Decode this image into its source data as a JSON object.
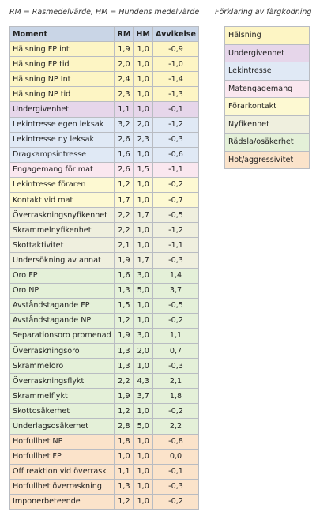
{
  "header": {
    "note_left": "RM = Rasmedelvärde,   HM = Hundens medelvärde",
    "note_right": "Förklaring av färgkodning"
  },
  "table": {
    "columns": [
      "Moment",
      "RM",
      "HM",
      "Avvikelse"
    ],
    "rows": [
      {
        "cells": [
          "Hälsning FP int",
          "1,9",
          "1,0",
          "-0,9"
        ],
        "color": "#fdf5c4"
      },
      {
        "cells": [
          "Hälsning FP tid",
          "2,0",
          "1,0",
          "-1,0"
        ],
        "color": "#fdf5c4"
      },
      {
        "cells": [
          "Hälsning NP Int",
          "2,4",
          "1,0",
          "-1,4"
        ],
        "color": "#fdf5c4"
      },
      {
        "cells": [
          "Hälsning NP tid",
          "2,3",
          "1,0",
          "-1,3"
        ],
        "color": "#fdf5c4"
      },
      {
        "cells": [
          "Undergivenhet",
          "1,1",
          "1,0",
          "-0,1"
        ],
        "color": "#e6d6ea"
      },
      {
        "cells": [
          "Lekintresse egen leksak",
          "3,2",
          "2,0",
          "-1,2"
        ],
        "color": "#e0e9f5"
      },
      {
        "cells": [
          "Lekintresse ny leksak",
          "2,6",
          "2,3",
          "-0,3"
        ],
        "color": "#e0e9f5"
      },
      {
        "cells": [
          "Dragkampsintresse",
          "1,6",
          "1,0",
          "-0,6"
        ],
        "color": "#e0e9f5"
      },
      {
        "cells": [
          "Engagemang för mat",
          "2,6",
          "1,5",
          "-1,1"
        ],
        "color": "#fae7ef"
      },
      {
        "cells": [
          "Lekintresse föraren",
          "1,2",
          "1,0",
          "-0,2"
        ],
        "color": "#fdf9d2"
      },
      {
        "cells": [
          "Kontakt vid mat",
          "1,7",
          "1,0",
          "-0,7"
        ],
        "color": "#fdf9d2"
      },
      {
        "cells": [
          "Överraskningsnyfikenhet",
          "2,2",
          "1,7",
          "-0,5"
        ],
        "color": "#efefde"
      },
      {
        "cells": [
          "Skrammelnyfikenhet",
          "2,2",
          "1,0",
          "-1,2"
        ],
        "color": "#efefde"
      },
      {
        "cells": [
          "Skottaktivitet",
          "2,1",
          "1,0",
          "-1,1"
        ],
        "color": "#efefde"
      },
      {
        "cells": [
          "Undersökning av annat",
          "1,9",
          "1,7",
          "-0,3"
        ],
        "color": "#efefde"
      },
      {
        "cells": [
          "Oro FP",
          "1,6",
          "3,0",
          "1,4"
        ],
        "color": "#e4f0d8"
      },
      {
        "cells": [
          "Oro NP",
          "1,3",
          "5,0",
          "3,7"
        ],
        "color": "#e4f0d8"
      },
      {
        "cells": [
          "Avståndstagande FP",
          "1,5",
          "1,0",
          "-0,5"
        ],
        "color": "#e4f0d8"
      },
      {
        "cells": [
          "Avståndstagande NP",
          "1,2",
          "1,0",
          "-0,2"
        ],
        "color": "#e4f0d8"
      },
      {
        "cells": [
          "Separationsoro promenad",
          "1,9",
          "3,0",
          "1,1"
        ],
        "color": "#e4f0d8"
      },
      {
        "cells": [
          "Överraskningsoro",
          "1,3",
          "2,0",
          "0,7"
        ],
        "color": "#e4f0d8"
      },
      {
        "cells": [
          "Skrammeloro",
          "1,3",
          "1,0",
          "-0,3"
        ],
        "color": "#e4f0d8"
      },
      {
        "cells": [
          "Överraskningsflykt",
          "2,2",
          "4,3",
          "2,1"
        ],
        "color": "#e4f0d8"
      },
      {
        "cells": [
          "Skrammelflykt",
          "1,9",
          "3,7",
          "1,8"
        ],
        "color": "#e4f0d8"
      },
      {
        "cells": [
          "Skottosäkerhet",
          "1,2",
          "1,0",
          "-0,2"
        ],
        "color": "#e4f0d8"
      },
      {
        "cells": [
          "Underlagsosäkerhet",
          "2,8",
          "5,0",
          "2,2"
        ],
        "color": "#e4f0d8"
      },
      {
        "cells": [
          "Hotfullhet NP",
          "1,8",
          "1,0",
          "-0,8"
        ],
        "color": "#fbe3ca"
      },
      {
        "cells": [
          "Hotfullhet FP",
          "1,0",
          "1,0",
          "0,0"
        ],
        "color": "#fbe3ca"
      },
      {
        "cells": [
          "Off reaktion vid överrask",
          "1,1",
          "1,0",
          "-0,1"
        ],
        "color": "#fbe3ca"
      },
      {
        "cells": [
          "Hotfullhet överraskning",
          "1,3",
          "1,0",
          "-0,3"
        ],
        "color": "#fbe3ca"
      },
      {
        "cells": [
          "Imponerbeteende",
          "1,2",
          "1,0",
          "-0,2"
        ],
        "color": "#fbe3ca"
      }
    ]
  },
  "legend": {
    "items": [
      {
        "label": "Hälsning",
        "color": "#fdf5c4"
      },
      {
        "label": "Undergivenhet",
        "color": "#e6d6ea"
      },
      {
        "label": "Lekintresse",
        "color": "#e0e9f5"
      },
      {
        "label": "Matengagemang",
        "color": "#fae7ef"
      },
      {
        "label": "Förarkontakt",
        "color": "#fdf9d2"
      },
      {
        "label": "Nyfikenhet",
        "color": "#efefde"
      },
      {
        "label": "Rädsla/osäkerhet",
        "color": "#e4f0d8"
      },
      {
        "label": "Hot/aggressivitet",
        "color": "#fbe3ca"
      }
    ]
  }
}
